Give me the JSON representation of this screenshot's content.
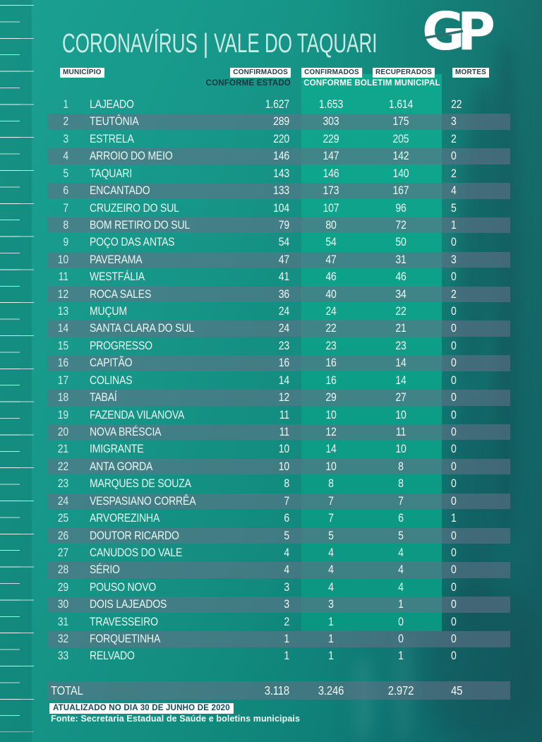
{
  "header": {
    "title_left": "CORONAVÍRUS",
    "separator": "|",
    "title_right": "VALE DO TAQUARI",
    "logo_text": "GP"
  },
  "columns": {
    "municipio": "MUNICÍPIO",
    "confirmados_estado": "CONFIRMADOS",
    "confirmados_municipal": "CONFIRMADOS",
    "recuperados": "RECUPERADOS",
    "mortes": "MORTES",
    "sub_estado": "CONFORME ESTADO",
    "sub_municipal": "CONFORME BOLETIM MUNICIPAL"
  },
  "table": {
    "rows": [
      {
        "rank": "1",
        "name": "LAJEADO",
        "estado": "1.627",
        "municipal": "1.653",
        "recuperados": "1.614",
        "mortes": "22"
      },
      {
        "rank": "2",
        "name": "TEUTÔNIA",
        "estado": "289",
        "municipal": "303",
        "recuperados": "175",
        "mortes": "3"
      },
      {
        "rank": "3",
        "name": "ESTRELA",
        "estado": "220",
        "municipal": "229",
        "recuperados": "205",
        "mortes": "2"
      },
      {
        "rank": "4",
        "name": "ARROIO DO MEIO",
        "estado": "146",
        "municipal": "147",
        "recuperados": "142",
        "mortes": "0"
      },
      {
        "rank": "5",
        "name": "TAQUARI",
        "estado": "143",
        "municipal": "146",
        "recuperados": "140",
        "mortes": "2"
      },
      {
        "rank": "6",
        "name": "ENCANTADO",
        "estado": "133",
        "municipal": "173",
        "recuperados": "167",
        "mortes": "4"
      },
      {
        "rank": "7",
        "name": "CRUZEIRO DO SUL",
        "estado": "104",
        "municipal": "107",
        "recuperados": "96",
        "mortes": "5"
      },
      {
        "rank": "8",
        "name": "BOM RETIRO DO SUL",
        "estado": "79",
        "municipal": "80",
        "recuperados": "72",
        "mortes": "1"
      },
      {
        "rank": "9",
        "name": "POÇO DAS ANTAS",
        "estado": "54",
        "municipal": "54",
        "recuperados": "50",
        "mortes": "0"
      },
      {
        "rank": "10",
        "name": "PAVERAMA",
        "estado": "47",
        "municipal": "47",
        "recuperados": "31",
        "mortes": "3"
      },
      {
        "rank": "11",
        "name": "WESTFÁLIA",
        "estado": "41",
        "municipal": "46",
        "recuperados": "46",
        "mortes": "0"
      },
      {
        "rank": "12",
        "name": "ROCA SALES",
        "estado": "36",
        "municipal": "40",
        "recuperados": "34",
        "mortes": "2"
      },
      {
        "rank": "13",
        "name": "MUÇUM",
        "estado": "24",
        "municipal": "24",
        "recuperados": "22",
        "mortes": "0"
      },
      {
        "rank": "14",
        "name": "SANTA CLARA DO SUL",
        "estado": "24",
        "municipal": "22",
        "recuperados": "21",
        "mortes": "0"
      },
      {
        "rank": "15",
        "name": "PROGRESSO",
        "estado": "23",
        "municipal": "23",
        "recuperados": "23",
        "mortes": "0"
      },
      {
        "rank": "16",
        "name": "CAPITÃO",
        "estado": "16",
        "municipal": "16",
        "recuperados": "14",
        "mortes": "0"
      },
      {
        "rank": "17",
        "name": "COLINAS",
        "estado": "14",
        "municipal": "16",
        "recuperados": "14",
        "mortes": "0"
      },
      {
        "rank": "18",
        "name": "TABAÍ",
        "estado": "12",
        "municipal": "29",
        "recuperados": "27",
        "mortes": "0"
      },
      {
        "rank": "19",
        "name": "FAZENDA VILANOVA",
        "estado": "11",
        "municipal": "10",
        "recuperados": "10",
        "mortes": "0"
      },
      {
        "rank": "20",
        "name": "NOVA BRÉSCIA",
        "estado": "11",
        "municipal": "12",
        "recuperados": "11",
        "mortes": "0"
      },
      {
        "rank": "21",
        "name": "IMIGRANTE",
        "estado": "10",
        "municipal": "14",
        "recuperados": "10",
        "mortes": "0"
      },
      {
        "rank": "22",
        "name": "ANTA GORDA",
        "estado": "10",
        "municipal": "10",
        "recuperados": "8",
        "mortes": "0"
      },
      {
        "rank": "23",
        "name": "MARQUES DE SOUZA",
        "estado": "8",
        "municipal": "8",
        "recuperados": "8",
        "mortes": "0"
      },
      {
        "rank": "24",
        "name": "VESPASIANO CORRÊA",
        "estado": "7",
        "municipal": "7",
        "recuperados": "7",
        "mortes": "0"
      },
      {
        "rank": "25",
        "name": "ARVOREZINHA",
        "estado": "6",
        "municipal": "7",
        "recuperados": "6",
        "mortes": "1"
      },
      {
        "rank": "26",
        "name": "DOUTOR RICARDO",
        "estado": "5",
        "municipal": "5",
        "recuperados": "5",
        "mortes": "0"
      },
      {
        "rank": "27",
        "name": "CANUDOS DO VALE",
        "estado": "4",
        "municipal": "4",
        "recuperados": "4",
        "mortes": "0"
      },
      {
        "rank": "28",
        "name": "SÉRIO",
        "estado": "4",
        "municipal": "4",
        "recuperados": "4",
        "mortes": "0"
      },
      {
        "rank": "29",
        "name": "POUSO NOVO",
        "estado": "3",
        "municipal": "4",
        "recuperados": "4",
        "mortes": "0"
      },
      {
        "rank": "30",
        "name": "DOIS LAJEADOS",
        "estado": "3",
        "municipal": "3",
        "recuperados": "1",
        "mortes": "0"
      },
      {
        "rank": "31",
        "name": "TRAVESSEIRO",
        "estado": "2",
        "municipal": "1",
        "recuperados": "0",
        "mortes": "0"
      },
      {
        "rank": "32",
        "name": "FORQUETINHA",
        "estado": "1",
        "municipal": "1",
        "recuperados": "0",
        "mortes": "0"
      },
      {
        "rank": "33",
        "name": "RELVADO",
        "estado": "1",
        "municipal": "1",
        "recuperados": "1",
        "mortes": "0"
      }
    ],
    "total": {
      "label": "TOTAL",
      "estado": "3.118",
      "municipal": "3.246",
      "recuperados": "2.972",
      "mortes": "45"
    }
  },
  "footer": {
    "updated": "ATUALIZADO NO DIA 30 DE JUNHO DE 2020",
    "source": "Fonte: Secretaria Estadual de Saúde e boletins municipais"
  },
  "colors": {
    "background_teal": "#128b7e",
    "stripe": "#4e7a86",
    "highlight_green": "#0fa78c",
    "label_bg": "#ffffff",
    "label_text": "#24404d",
    "text_light": "#eef8f4"
  },
  "chart_data": {
    "type": "table",
    "title": "CORONAVÍRUS | VALE DO TAQUARI",
    "columns": [
      "MUNICÍPIO",
      "CONFIRMADOS CONFORME ESTADO",
      "CONFIRMADOS CONFORME BOLETIM MUNICIPAL",
      "RECUPERADOS",
      "MORTES"
    ],
    "rows": [
      [
        "LAJEADO",
        1627,
        1653,
        1614,
        22
      ],
      [
        "TEUTÔNIA",
        289,
        303,
        175,
        3
      ],
      [
        "ESTRELA",
        220,
        229,
        205,
        2
      ],
      [
        "ARROIO DO MEIO",
        146,
        147,
        142,
        0
      ],
      [
        "TAQUARI",
        143,
        146,
        140,
        2
      ],
      [
        "ENCANTADO",
        133,
        173,
        167,
        4
      ],
      [
        "CRUZEIRO DO SUL",
        104,
        107,
        96,
        5
      ],
      [
        "BOM RETIRO DO SUL",
        79,
        80,
        72,
        1
      ],
      [
        "POÇO DAS ANTAS",
        54,
        54,
        50,
        0
      ],
      [
        "PAVERAMA",
        47,
        47,
        31,
        3
      ],
      [
        "WESTFÁLIA",
        41,
        46,
        46,
        0
      ],
      [
        "ROCA SALES",
        36,
        40,
        34,
        2
      ],
      [
        "MUÇUM",
        24,
        24,
        22,
        0
      ],
      [
        "SANTA CLARA DO SUL",
        24,
        22,
        21,
        0
      ],
      [
        "PROGRESSO",
        23,
        23,
        23,
        0
      ],
      [
        "CAPITÃO",
        16,
        16,
        14,
        0
      ],
      [
        "COLINAS",
        14,
        16,
        14,
        0
      ],
      [
        "TABAÍ",
        12,
        29,
        27,
        0
      ],
      [
        "FAZENDA VILANOVA",
        11,
        10,
        10,
        0
      ],
      [
        "NOVA BRÉSCIA",
        11,
        12,
        11,
        0
      ],
      [
        "IMIGRANTE",
        10,
        14,
        10,
        0
      ],
      [
        "ANTA GORDA",
        10,
        10,
        8,
        0
      ],
      [
        "MARQUES DE SOUZA",
        8,
        8,
        8,
        0
      ],
      [
        "VESPASIANO CORRÊA",
        7,
        7,
        7,
        0
      ],
      [
        "ARVOREZINHA",
        6,
        7,
        6,
        1
      ],
      [
        "DOUTOR RICARDO",
        5,
        5,
        5,
        0
      ],
      [
        "CANUDOS DO VALE",
        4,
        4,
        4,
        0
      ],
      [
        "SÉRIO",
        4,
        4,
        4,
        0
      ],
      [
        "POUSO NOVO",
        3,
        4,
        4,
        0
      ],
      [
        "DOIS LAJEADOS",
        3,
        3,
        1,
        0
      ],
      [
        "TRAVESSEIRO",
        2,
        1,
        0,
        0
      ],
      [
        "FORQUETINHA",
        1,
        1,
        0,
        0
      ],
      [
        "RELVADO",
        1,
        1,
        1,
        0
      ]
    ],
    "total_row": [
      "TOTAL",
      3118,
      3246,
      2972,
      45
    ],
    "updated": "ATUALIZADO NO DIA 30 DE JUNHO DE 2020",
    "source": "Fonte: Secretaria Estadual de Saúde e boletins municipais"
  }
}
